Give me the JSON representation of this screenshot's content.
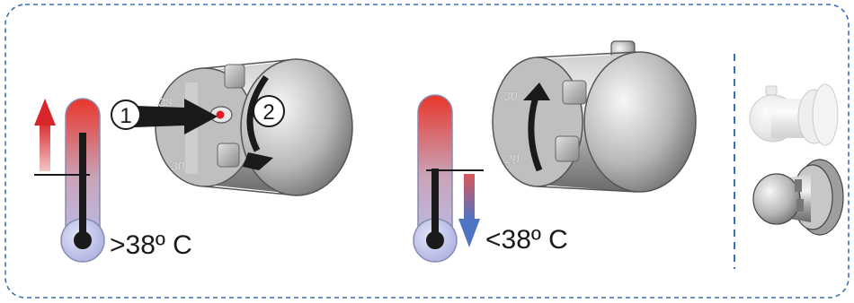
{
  "panels": {
    "increase": {
      "temperature_label": ">38º C",
      "step_1": "1",
      "step_2": "2",
      "scale_high": "38",
      "scale_low": "30"
    },
    "decrease": {
      "temperature_label": "<38º C",
      "scale_high": "30",
      "scale_low": "20"
    }
  },
  "colors": {
    "border": "#3a6fb5",
    "arrow_up": "#d8262a",
    "arrow_down": "#4f74c4",
    "thermo_hot": "#e8362b",
    "thermo_cold": "#b9bde8",
    "override_dot": "#e01b24"
  }
}
